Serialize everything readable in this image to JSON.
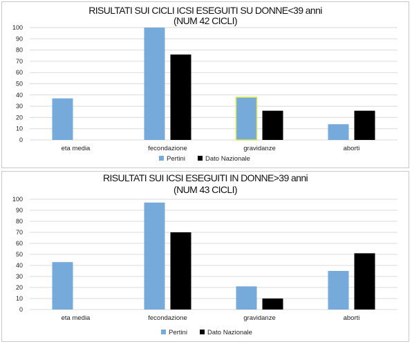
{
  "colors": {
    "pertini": "#76aadb",
    "nazionale": "#000000",
    "highlight_outline": "#d6e84a",
    "grid": "#d9d9d9"
  },
  "chart_data": [
    {
      "type": "bar",
      "title_line1": "RISULTATI SUI CICLI ICSI ESEGUITI SU DONNE<39 anni",
      "title_line2": "(NUM 42 CICLI)",
      "categories": [
        "eta media",
        "fecondazione",
        "gravidanze",
        "aborti"
      ],
      "series": [
        {
          "name": "Pertini",
          "values": [
            37,
            100,
            38,
            14
          ]
        },
        {
          "name": "Dato Nazionale",
          "values": [
            null,
            76,
            26,
            26
          ]
        }
      ],
      "ylim": [
        0,
        100
      ],
      "yticks": [
        "0",
        "10",
        "20",
        "30",
        "40",
        "50",
        "60",
        "70",
        "80",
        "90",
        "100"
      ],
      "grid": true,
      "legend_position": "bottom"
    },
    {
      "type": "bar",
      "title_line1": "RISULTATI SUI ICSI ESEGUITI IN DONNE>39 anni",
      "title_line2": "(NUM 43 CICLI)",
      "categories": [
        "eta media",
        "fecondazione",
        "gravidanze",
        "aborti"
      ],
      "series": [
        {
          "name": "Pertini",
          "values": [
            43,
            97,
            21,
            35
          ]
        },
        {
          "name": "Dato Nazionale",
          "values": [
            null,
            70,
            10,
            51
          ]
        }
      ],
      "ylim": [
        0,
        100
      ],
      "yticks": [
        "0",
        "10",
        "20",
        "30",
        "40",
        "50",
        "60",
        "70",
        "80",
        "90",
        "100"
      ],
      "grid": true,
      "legend_position": "bottom"
    }
  ]
}
